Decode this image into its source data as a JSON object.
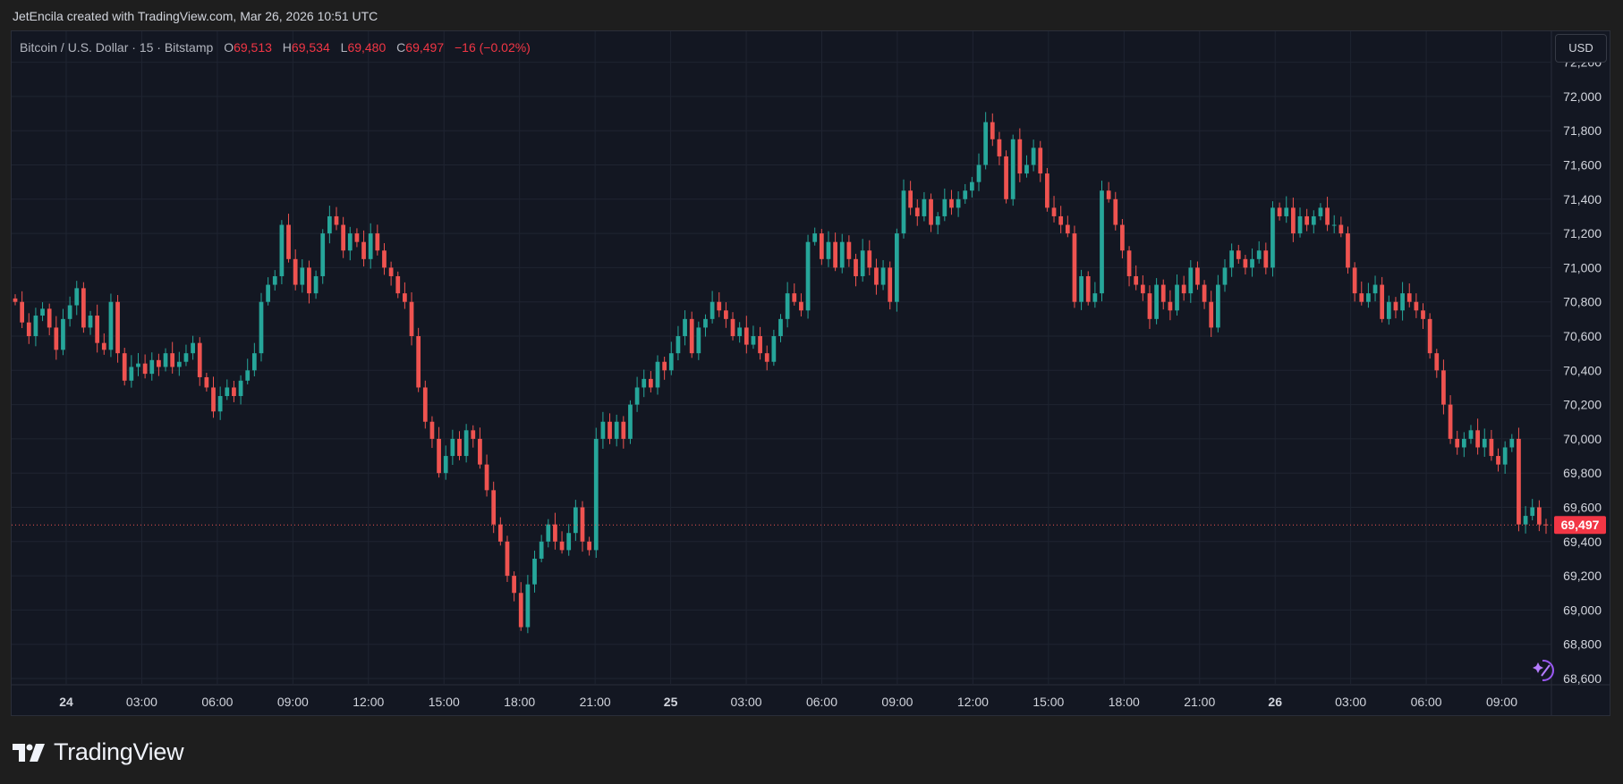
{
  "attribution": "JetEncila created with TradingView.com, Mar 26, 2026 10:51 UTC",
  "brand": {
    "name": "TradingView",
    "icon": "tradingview-logo-icon"
  },
  "currency_button": "USD",
  "legend": {
    "symbol": "Bitcoin / U.S. Dollar · 15 · Bitstamp",
    "o_label": "O",
    "o": "69,513",
    "h_label": "H",
    "h": "69,534",
    "l_label": "L",
    "l": "69,480",
    "c_label": "C",
    "c": "69,497",
    "change": "−16 (−0.02%)"
  },
  "colors": {
    "up": "#26a69a",
    "down": "#ef5350",
    "background": "#131722",
    "grid": "#1f2431"
  },
  "chart_data": {
    "type": "candlestick",
    "interval": "15",
    "yaxis": {
      "ticks": [
        68600,
        68800,
        69000,
        69200,
        69400,
        69600,
        69800,
        70000,
        70200,
        70400,
        70600,
        70800,
        71000,
        71200,
        71400,
        71600,
        71800,
        72000,
        72200
      ],
      "tick_labels": [
        "68,600",
        "68,800",
        "69,000",
        "69,200",
        "69,400",
        "69,600",
        "69,800",
        "70,000",
        "70,200",
        "70,400",
        "70,600",
        "70,800",
        "71,000",
        "71,200",
        "71,400",
        "71,600",
        "71,800",
        "72,000",
        "72,200"
      ],
      "ylim": [
        68570,
        72260
      ]
    },
    "xaxis": {
      "tick_labels": [
        "24",
        "03:00",
        "06:00",
        "09:00",
        "12:00",
        "15:00",
        "18:00",
        "21:00",
        "25",
        "03:00",
        "06:00",
        "09:00",
        "12:00",
        "15:00",
        "18:00",
        "21:00",
        "26",
        "03:00",
        "06:00",
        "09:00"
      ],
      "bold": [
        "24",
        "25",
        "26"
      ]
    },
    "last_price": 69497,
    "last_price_label": "69,497",
    "closes": [
      70800,
      70680,
      70600,
      70720,
      70760,
      70650,
      70520,
      70700,
      70780,
      70880,
      70650,
      70720,
      70560,
      70520,
      70800,
      70500,
      70340,
      70420,
      70440,
      70380,
      70460,
      70420,
      70500,
      70420,
      70450,
      70500,
      70560,
      70360,
      70300,
      70160,
      70250,
      70300,
      70250,
      70340,
      70400,
      70500,
      70800,
      70900,
      70950,
      71250,
      71050,
      70900,
      71000,
      70850,
      70950,
      71200,
      71300,
      71250,
      71100,
      71200,
      71150,
      71050,
      71200,
      71100,
      71000,
      70950,
      70850,
      70800,
      70600,
      70300,
      70100,
      70000,
      69800,
      69900,
      70000,
      69900,
      70050,
      70000,
      69850,
      69700,
      69500,
      69400,
      69200,
      69100,
      68900,
      69150,
      69300,
      69400,
      69500,
      69400,
      69350,
      69450,
      69600,
      69400,
      69350,
      70000,
      70100,
      70000,
      70100,
      70000,
      70200,
      70300,
      70350,
      70300,
      70450,
      70400,
      70500,
      70600,
      70700,
      70500,
      70650,
      70700,
      70800,
      70750,
      70700,
      70600,
      70650,
      70550,
      70600,
      70500,
      70450,
      70600,
      70700,
      70850,
      70800,
      70750,
      71150,
      71200,
      71050,
      71150,
      71000,
      71150,
      71050,
      70950,
      71100,
      71000,
      70900,
      71000,
      70800,
      71200,
      71450,
      71350,
      71300,
      71400,
      71250,
      71300,
      71400,
      71350,
      71400,
      71450,
      71500,
      71600,
      71850,
      71750,
      71650,
      71400,
      71750,
      71550,
      71600,
      71700,
      71550,
      71350,
      71300,
      71250,
      71200,
      70800,
      70950,
      70800,
      70850,
      71450,
      71400,
      71250,
      71100,
      70950,
      70900,
      70850,
      70700,
      70900,
      70800,
      70750,
      70900,
      70850,
      71000,
      70900,
      70800,
      70650,
      70900,
      71000,
      71100,
      71050,
      71000,
      71050,
      71100,
      71000,
      71350,
      71300,
      71350,
      71200,
      71300,
      71250,
      71300,
      71350,
      71250,
      71250,
      71200,
      71000,
      70850,
      70800,
      70850,
      70900,
      70700,
      70800,
      70750,
      70850,
      70800,
      70750,
      70700,
      70500,
      70400,
      70200,
      70000,
      69950,
      70000,
      70050,
      69950,
      70000,
      69900,
      69850,
      69950,
      70000,
      69500,
      69550,
      69600,
      69500,
      69497
    ]
  }
}
